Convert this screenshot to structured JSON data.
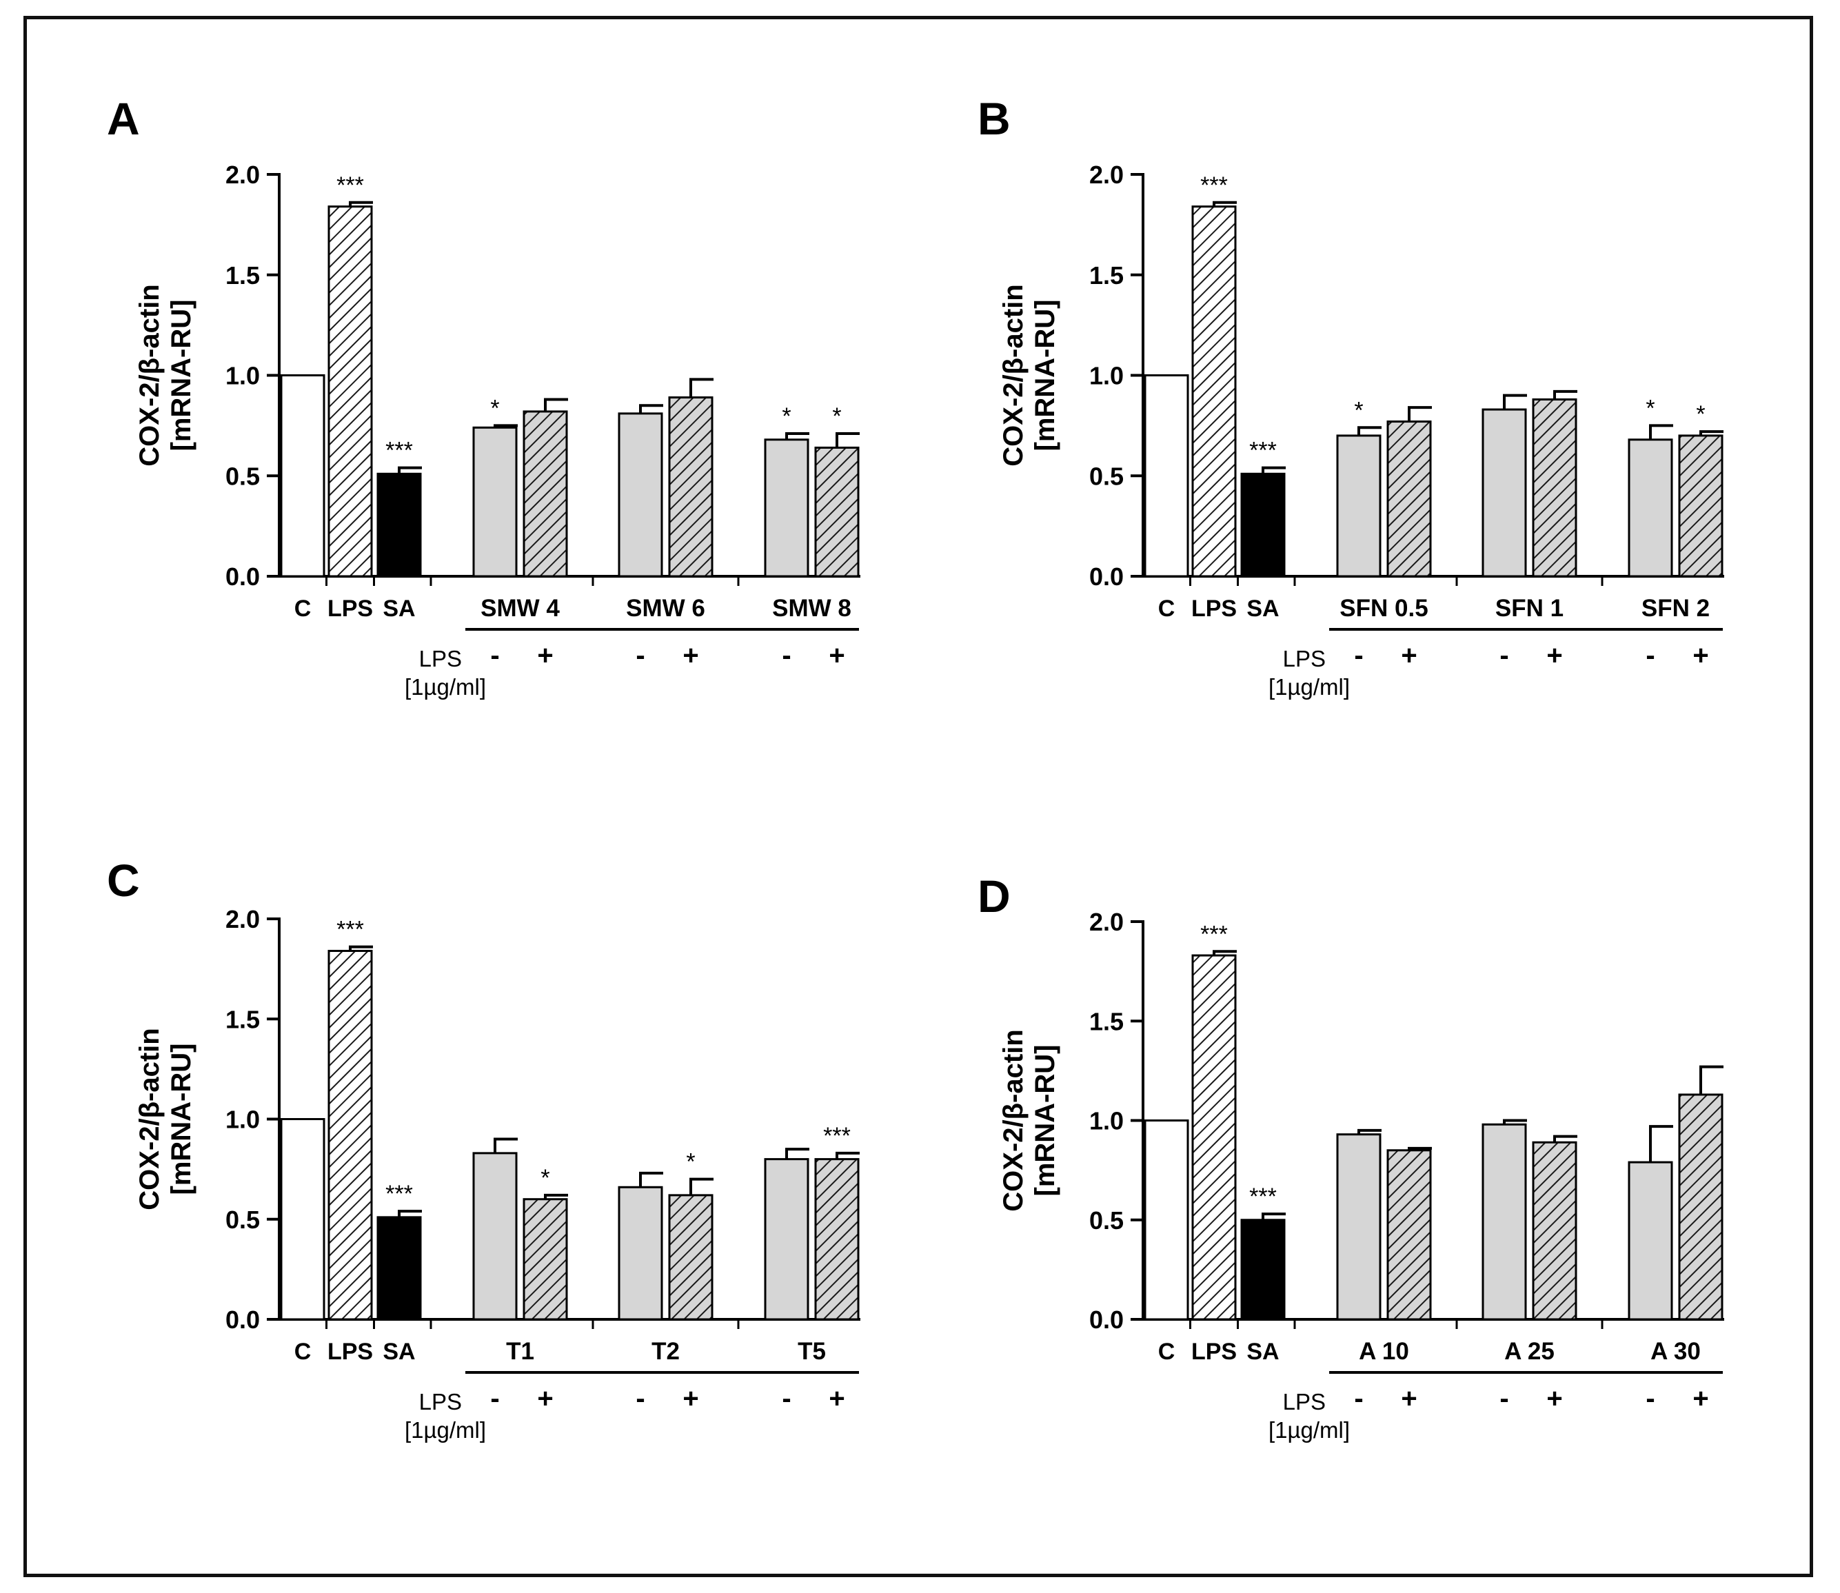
{
  "figure": {
    "y_label_line1": "COX-2/β-actin",
    "y_label_line2": "[mRNA-RU]",
    "lps_label": "LPS",
    "lps_conc": "[1µg/ml]",
    "minus_sign": "-",
    "plus_sign": "+"
  },
  "chart_data": [
    {
      "type": "bar",
      "panel": "A",
      "ylim": [
        0,
        2.0
      ],
      "yticks": [
        "0.0",
        "0.5",
        "1.0",
        "1.5",
        "2.0"
      ],
      "controls": [
        {
          "label": "C",
          "value": 1.0,
          "err": 0,
          "sig": "",
          "style": "white"
        },
        {
          "label": "LPS",
          "value": 1.84,
          "err": 0.02,
          "sig": "***",
          "style": "hatch-white"
        },
        {
          "label": "SA",
          "value": 0.51,
          "err": 0.03,
          "sig": "***",
          "style": "black"
        }
      ],
      "groups": [
        {
          "name": "SMW 4",
          "minus": {
            "value": 0.74,
            "err": 0.01,
            "sig": "*"
          },
          "plus": {
            "value": 0.82,
            "err": 0.06,
            "sig": ""
          }
        },
        {
          "name": "SMW 6",
          "minus": {
            "value": 0.81,
            "err": 0.04,
            "sig": ""
          },
          "plus": {
            "value": 0.89,
            "err": 0.09,
            "sig": ""
          }
        },
        {
          "name": "SMW 8",
          "minus": {
            "value": 0.68,
            "err": 0.03,
            "sig": "*"
          },
          "plus": {
            "value": 0.64,
            "err": 0.07,
            "sig": "*"
          }
        }
      ]
    },
    {
      "type": "bar",
      "panel": "B",
      "ylim": [
        0,
        2.0
      ],
      "yticks": [
        "0.0",
        "0.5",
        "1.0",
        "1.5",
        "2.0"
      ],
      "controls": [
        {
          "label": "C",
          "value": 1.0,
          "err": 0,
          "sig": "",
          "style": "white"
        },
        {
          "label": "LPS",
          "value": 1.84,
          "err": 0.02,
          "sig": "***",
          "style": "hatch-white"
        },
        {
          "label": "SA",
          "value": 0.51,
          "err": 0.03,
          "sig": "***",
          "style": "black"
        }
      ],
      "groups": [
        {
          "name": "SFN 0.5",
          "minus": {
            "value": 0.7,
            "err": 0.04,
            "sig": "*"
          },
          "plus": {
            "value": 0.77,
            "err": 0.07,
            "sig": ""
          }
        },
        {
          "name": "SFN 1",
          "minus": {
            "value": 0.83,
            "err": 0.07,
            "sig": ""
          },
          "plus": {
            "value": 0.88,
            "err": 0.04,
            "sig": ""
          }
        },
        {
          "name": "SFN 2",
          "minus": {
            "value": 0.68,
            "err": 0.07,
            "sig": "*"
          },
          "plus": {
            "value": 0.7,
            "err": 0.02,
            "sig": "*"
          }
        }
      ]
    },
    {
      "type": "bar",
      "panel": "C",
      "ylim": [
        0,
        2.0
      ],
      "yticks": [
        "0.0",
        "0.5",
        "1.0",
        "1.5",
        "2.0"
      ],
      "controls": [
        {
          "label": "C",
          "value": 1.0,
          "err": 0,
          "sig": "",
          "style": "white"
        },
        {
          "label": "LPS",
          "value": 1.84,
          "err": 0.02,
          "sig": "***",
          "style": "hatch-white"
        },
        {
          "label": "SA",
          "value": 0.51,
          "err": 0.03,
          "sig": "***",
          "style": "black"
        }
      ],
      "groups": [
        {
          "name": "T1",
          "minus": {
            "value": 0.83,
            "err": 0.07,
            "sig": ""
          },
          "plus": {
            "value": 0.6,
            "err": 0.02,
            "sig": "*"
          }
        },
        {
          "name": "T2",
          "minus": {
            "value": 0.66,
            "err": 0.07,
            "sig": ""
          },
          "plus": {
            "value": 0.62,
            "err": 0.08,
            "sig": "*"
          }
        },
        {
          "name": "T5",
          "minus": {
            "value": 0.8,
            "err": 0.05,
            "sig": ""
          },
          "plus": {
            "value": 0.8,
            "err": 0.03,
            "sig": "***"
          }
        }
      ]
    },
    {
      "type": "bar",
      "panel": "D",
      "ylim": [
        0,
        2.0
      ],
      "yticks": [
        "0.0",
        "0.5",
        "1.0",
        "1.5",
        "2.0"
      ],
      "controls": [
        {
          "label": "C",
          "value": 1.0,
          "err": 0,
          "sig": "",
          "style": "white"
        },
        {
          "label": "LPS",
          "value": 1.83,
          "err": 0.02,
          "sig": "***",
          "style": "hatch-white"
        },
        {
          "label": "SA",
          "value": 0.5,
          "err": 0.03,
          "sig": "***",
          "style": "black"
        }
      ],
      "groups": [
        {
          "name": "A 10",
          "minus": {
            "value": 0.93,
            "err": 0.02,
            "sig": ""
          },
          "plus": {
            "value": 0.85,
            "err": 0.01,
            "sig": ""
          }
        },
        {
          "name": "A 25",
          "minus": {
            "value": 0.98,
            "err": 0.02,
            "sig": ""
          },
          "plus": {
            "value": 0.89,
            "err": 0.03,
            "sig": ""
          }
        },
        {
          "name": "A 30",
          "minus": {
            "value": 0.79,
            "err": 0.18,
            "sig": ""
          },
          "plus": {
            "value": 1.13,
            "err": 0.14,
            "sig": ""
          }
        }
      ]
    }
  ]
}
